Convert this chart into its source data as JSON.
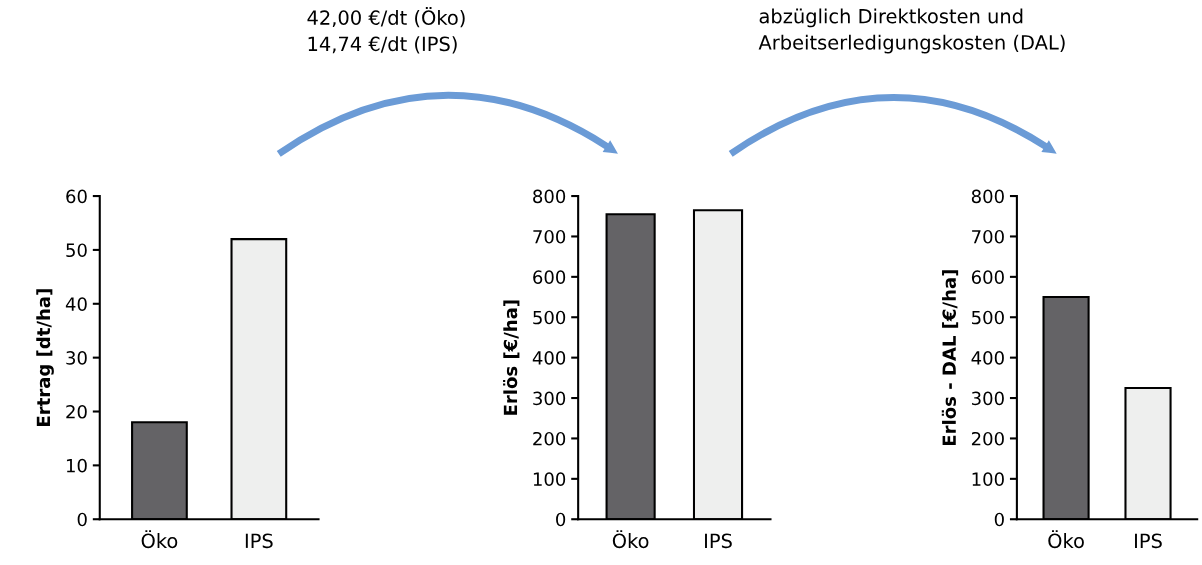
{
  "chart_data": [
    {
      "type": "bar",
      "ylabel": "Ertrag [dt/ha]",
      "categories": [
        "Öko",
        "IPS"
      ],
      "values": [
        18,
        52
      ],
      "colors": [
        "#646366",
        "#eeefee"
      ],
      "ylim": [
        0,
        60
      ],
      "yticks": [
        0,
        10,
        20,
        30,
        40,
        50,
        60
      ],
      "grid": false,
      "annotations": [
        "42,00 €/dt (Öko)\n14,74 €/dt (IPS)"
      ]
    },
    {
      "type": "bar",
      "ylabel": "Erlös [€/ha]",
      "categories": [
        "Öko",
        "IPS"
      ],
      "values": [
        755,
        765
      ],
      "colors": [
        "#646366",
        "#eeefee"
      ],
      "ylim": [
        0,
        800
      ],
      "yticks": [
        0,
        100,
        200,
        300,
        400,
        500,
        600,
        700,
        800
      ],
      "grid": false,
      "annotations": [
        "abzüglich Direktkosten und\nArbeitserledigungskosten (DAL)"
      ]
    },
    {
      "type": "bar",
      "ylabel": "Erlös - DAL [€/ha]",
      "categories": [
        "Öko",
        "IPS"
      ],
      "values": [
        550,
        325
      ],
      "colors": [
        "#646366",
        "#eeefee"
      ],
      "ylim": [
        0,
        800
      ],
      "yticks": [
        0,
        100,
        200,
        300,
        400,
        500,
        600,
        700,
        800
      ],
      "grid": false
    }
  ]
}
